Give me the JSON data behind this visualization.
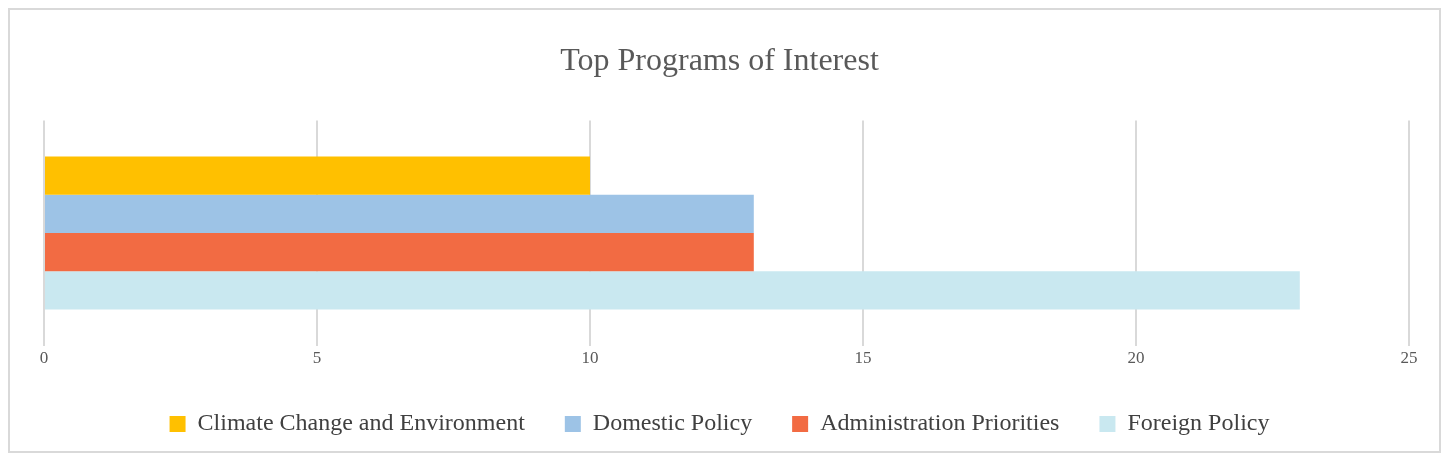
{
  "chart_data": {
    "type": "bar",
    "orientation": "horizontal",
    "title": "Top Programs of Interest",
    "categories": [
      null
    ],
    "series": [
      {
        "name": "Climate Change and Environment",
        "color": "#ffc000",
        "values": [
          10
        ]
      },
      {
        "name": "Domestic Policy",
        "color": "#9dc3e6",
        "values": [
          13
        ]
      },
      {
        "name": "Administration Priorities",
        "color": "#f26b43",
        "values": [
          13
        ]
      },
      {
        "name": "Foreign Policy",
        "color": "#c9e8f0",
        "values": [
          23
        ]
      }
    ],
    "xlim": [
      0,
      25
    ],
    "xticks": [
      0,
      5,
      10,
      15,
      20,
      25
    ],
    "grid": "x",
    "legend": "bottom"
  }
}
